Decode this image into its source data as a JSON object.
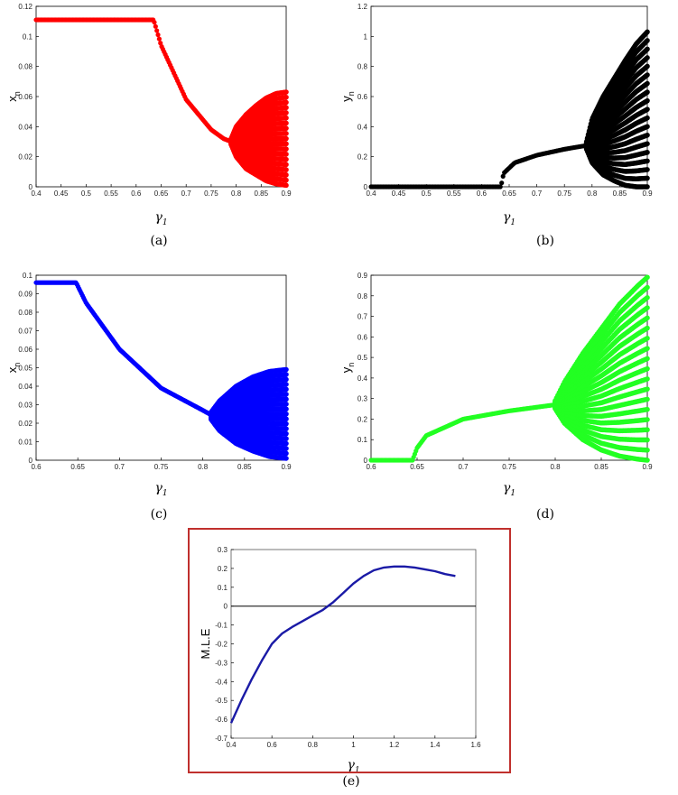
{
  "chart_data": [
    {
      "id": "a",
      "type": "scatter",
      "caption": "(a)",
      "xlabel": "γ",
      "xlabel_sub": "1",
      "ylabel": "x",
      "ylabel_sub": "n",
      "xlim": [
        0.4,
        0.9
      ],
      "ylim": [
        0,
        0.12
      ],
      "xticks": [
        0.4,
        0.45,
        0.5,
        0.55,
        0.6,
        0.65,
        0.7,
        0.75,
        0.8,
        0.85,
        0.9
      ],
      "yticks": [
        0,
        0.02,
        0.04,
        0.06,
        0.08,
        0.1,
        0.12
      ],
      "color": "#ff0000",
      "series": [
        {
          "fixed_x": [
            0.4,
            0.45,
            0.5,
            0.55,
            0.6,
            0.63,
            0.635,
            0.65,
            0.7,
            0.75,
            0.775,
            0.79
          ],
          "fixed_y": [
            0.111,
            0.111,
            0.111,
            0.111,
            0.111,
            0.111,
            0.111,
            0.094,
            0.058,
            0.038,
            0.032,
            0.03
          ],
          "chaos_x": [
            0.79,
            0.8,
            0.82,
            0.84,
            0.86,
            0.88,
            0.9
          ],
          "chaos_low": [
            0.028,
            0.02,
            0.012,
            0.008,
            0.004,
            0.002,
            0.001
          ],
          "chaos_high": [
            0.032,
            0.04,
            0.048,
            0.054,
            0.059,
            0.062,
            0.063
          ]
        }
      ]
    },
    {
      "id": "b",
      "type": "scatter",
      "caption": "(b)",
      "xlabel": "γ",
      "xlabel_sub": "1",
      "ylabel": "y",
      "ylabel_sub": "n",
      "xlim": [
        0.4,
        0.9
      ],
      "ylim": [
        0,
        1.2
      ],
      "xticks": [
        0.4,
        0.45,
        0.5,
        0.55,
        0.6,
        0.65,
        0.7,
        0.75,
        0.8,
        0.85,
        0.9
      ],
      "yticks": [
        0,
        0.2,
        0.4,
        0.6,
        0.8,
        1,
        1.2
      ],
      "color": "#000000",
      "series": [
        {
          "fixed_x": [
            0.4,
            0.5,
            0.6,
            0.635,
            0.64,
            0.66,
            0.7,
            0.75,
            0.79
          ],
          "fixed_y": [
            0,
            0,
            0,
            0,
            0.09,
            0.16,
            0.21,
            0.25,
            0.275
          ],
          "chaos_x": [
            0.79,
            0.8,
            0.82,
            0.84,
            0.86,
            0.88,
            0.9
          ],
          "chaos_low": [
            0.25,
            0.16,
            0.08,
            0.04,
            0.01,
            0.0,
            0.0
          ],
          "chaos_high": [
            0.3,
            0.45,
            0.6,
            0.72,
            0.84,
            0.95,
            1.03
          ]
        }
      ]
    },
    {
      "id": "c",
      "type": "scatter",
      "caption": "(c)",
      "xlabel": "γ",
      "xlabel_sub": "1",
      "ylabel": "x",
      "ylabel_sub": "n",
      "xlim": [
        0.6,
        0.9
      ],
      "ylim": [
        0,
        0.1
      ],
      "xticks": [
        0.6,
        0.65,
        0.7,
        0.75,
        0.8,
        0.85,
        0.9
      ],
      "yticks": [
        0,
        0.01,
        0.02,
        0.03,
        0.04,
        0.05,
        0.06,
        0.07,
        0.08,
        0.09,
        0.1
      ],
      "color": "#0000ff",
      "series": [
        {
          "fixed_x": [
            0.6,
            0.62,
            0.645,
            0.648,
            0.66,
            0.7,
            0.75,
            0.8,
            0.812
          ],
          "fixed_y": [
            0.096,
            0.096,
            0.096,
            0.096,
            0.085,
            0.06,
            0.039,
            0.027,
            0.024
          ],
          "chaos_x": [
            0.81,
            0.82,
            0.84,
            0.86,
            0.88,
            0.9
          ],
          "chaos_low": [
            0.022,
            0.016,
            0.009,
            0.005,
            0.002,
            0.001
          ],
          "chaos_high": [
            0.026,
            0.032,
            0.04,
            0.045,
            0.048,
            0.049
          ]
        }
      ]
    },
    {
      "id": "d",
      "type": "scatter",
      "caption": "(d)",
      "xlabel": "γ",
      "xlabel_sub": "1",
      "ylabel": "y",
      "ylabel_sub": "n",
      "xlim": [
        0.6,
        0.9
      ],
      "ylim": [
        0,
        0.9
      ],
      "xticks": [
        0.6,
        0.65,
        0.7,
        0.75,
        0.8,
        0.85,
        0.9
      ],
      "yticks": [
        0,
        0.1,
        0.2,
        0.3,
        0.4,
        0.5,
        0.6,
        0.7,
        0.8,
        0.9
      ],
      "color": "#22ff22",
      "series": [
        {
          "fixed_x": [
            0.6,
            0.62,
            0.645,
            0.65,
            0.66,
            0.7,
            0.75,
            0.8
          ],
          "fixed_y": [
            0,
            0,
            0,
            0.06,
            0.12,
            0.2,
            0.24,
            0.27
          ],
          "chaos_x": [
            0.8,
            0.81,
            0.83,
            0.85,
            0.87,
            0.89,
            0.9
          ],
          "chaos_low": [
            0.25,
            0.18,
            0.1,
            0.05,
            0.02,
            0.005,
            0.0
          ],
          "chaos_high": [
            0.29,
            0.38,
            0.52,
            0.64,
            0.76,
            0.85,
            0.89
          ]
        }
      ]
    },
    {
      "id": "e",
      "type": "line",
      "caption": "(e)",
      "xlabel": "γ",
      "xlabel_sub": "1",
      "ylabel": "M.L.E",
      "ylabel_sub": "",
      "xlim": [
        0.4,
        1.6
      ],
      "ylim": [
        -0.7,
        0.3
      ],
      "xticks": [
        0.4,
        0.6,
        0.8,
        1,
        1.2,
        1.4,
        1.6
      ],
      "yticks": [
        -0.7,
        -0.6,
        -0.5,
        -0.4,
        -0.3,
        -0.2,
        -0.1,
        0,
        0.1,
        0.2,
        0.3
      ],
      "color": "#1a1aa6",
      "zero_line": true,
      "series": [
        {
          "x": [
            0.4,
            0.45,
            0.5,
            0.55,
            0.6,
            0.65,
            0.7,
            0.75,
            0.8,
            0.85,
            0.9,
            0.95,
            1.0,
            1.05,
            1.1,
            1.15,
            1.2,
            1.25,
            1.3,
            1.35,
            1.4,
            1.45,
            1.5
          ],
          "y": [
            -0.62,
            -0.5,
            -0.39,
            -0.29,
            -0.2,
            -0.145,
            -0.11,
            -0.08,
            -0.05,
            -0.02,
            0.02,
            0.07,
            0.12,
            0.16,
            0.19,
            0.205,
            0.21,
            0.21,
            0.205,
            0.195,
            0.185,
            0.17,
            0.16
          ]
        }
      ]
    }
  ]
}
